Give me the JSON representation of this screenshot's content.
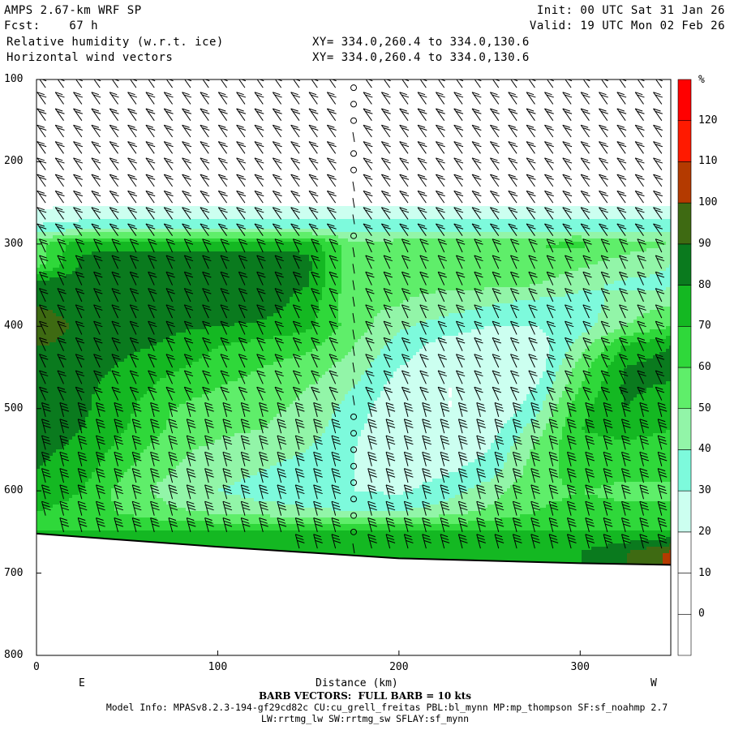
{
  "header": {
    "line1_left": "AMPS 2.67-km WRF SP",
    "line1_right": "Init: 00 UTC Sat 31 Jan 26",
    "line2_left": "Fcst:    67 h",
    "line2_right": "Valid: 19 UTC Mon 02 Feb 26",
    "line3_left": "Relative humidity (w.r.t. ice)",
    "line3_right": "XY= 334.0,260.4 to 334.0,130.6",
    "line4_left": "Horizontal wind vectors",
    "line4_right": "XY= 334.0,260.4 to 334.0,130.6"
  },
  "chart_data": {
    "type": "heatmap",
    "title": "Relative humidity (w.r.t. ice)",
    "xlabel": "Distance (km)",
    "ylabel": "",
    "xlim": [
      0,
      350
    ],
    "ylim": [
      800,
      100
    ],
    "x_ticks": [
      0,
      100,
      200,
      300
    ],
    "y_ticks": [
      100,
      200,
      300,
      400,
      500,
      600,
      700,
      800
    ],
    "x_end_labels": {
      "left": "E",
      "right": "W"
    },
    "colorbar": {
      "unit": "%",
      "levels": [
        0,
        10,
        20,
        30,
        40,
        50,
        60,
        70,
        80,
        90,
        100,
        110,
        120
      ],
      "colors": [
        "#ffffff",
        "#ffffff",
        "#ffffff",
        "#ccfff0",
        "#7dfadc",
        "#92f5a8",
        "#5fee6a",
        "#2fd83a",
        "#14b822",
        "#0a7a1e",
        "#3e6a12",
        "#b43a00",
        "#ff1a00"
      ]
    },
    "terrain": {
      "x": [
        0,
        100,
        200,
        300,
        350
      ],
      "p": [
        652,
        668,
        682,
        688,
        690
      ]
    },
    "rh_field": {
      "x": [
        0,
        25,
        50,
        75,
        100,
        125,
        150,
        175,
        200,
        225,
        250,
        275,
        300,
        325,
        350
      ],
      "p": [
        100,
        200,
        280,
        300,
        325,
        350,
        375,
        400,
        425,
        450,
        475,
        500,
        525,
        550,
        575,
        600,
        625,
        650,
        675
      ],
      "values": [
        [
          0,
          0,
          0,
          0,
          0,
          0,
          0,
          0,
          0,
          0,
          0,
          0,
          0,
          0,
          0
        ],
        [
          0,
          0,
          0,
          0,
          0,
          0,
          0,
          0,
          0,
          0,
          0,
          0,
          0,
          0,
          0
        ],
        [
          42,
          45,
          45,
          45,
          45,
          45,
          45,
          45,
          45,
          45,
          45,
          45,
          45,
          45,
          45
        ],
        [
          65,
          88,
          88,
          88,
          88,
          88,
          88,
          62,
          65,
          65,
          70,
          70,
          72,
          65,
          60
        ],
        [
          65,
          92,
          95,
          95,
          95,
          95,
          92,
          62,
          62,
          68,
          70,
          68,
          62,
          55,
          50
        ],
        [
          98,
          96,
          96,
          97,
          97,
          95,
          90,
          62,
          62,
          62,
          62,
          60,
          52,
          48,
          48
        ],
        [
          100,
          97,
          95,
          96,
          98,
          95,
          85,
          62,
          60,
          55,
          50,
          45,
          45,
          55,
          60
        ],
        [
          105,
          98,
          95,
          92,
          90,
          88,
          82,
          65,
          52,
          45,
          40,
          40,
          45,
          60,
          70
        ],
        [
          100,
          98,
          92,
          88,
          80,
          75,
          72,
          60,
          45,
          35,
          32,
          32,
          55,
          82,
          90
        ],
        [
          98,
          95,
          88,
          82,
          75,
          70,
          65,
          55,
          40,
          33,
          30,
          32,
          65,
          90,
          95
        ],
        [
          96,
          92,
          85,
          75,
          70,
          65,
          60,
          50,
          35,
          30,
          30,
          40,
          70,
          92,
          88
        ],
        [
          95,
          92,
          82,
          70,
          65,
          62,
          58,
          45,
          32,
          30,
          30,
          45,
          78,
          90,
          85
        ],
        [
          94,
          90,
          80,
          68,
          62,
          60,
          55,
          42,
          32,
          30,
          35,
          55,
          80,
          82,
          80
        ],
        [
          92,
          88,
          75,
          62,
          58,
          55,
          50,
          40,
          32,
          32,
          40,
          62,
          78,
          78,
          78
        ],
        [
          90,
          84,
          70,
          60,
          55,
          50,
          45,
          40,
          35,
          38,
          45,
          65,
          75,
          72,
          72
        ],
        [
          88,
          80,
          65,
          55,
          50,
          45,
          42,
          40,
          38,
          45,
          55,
          68,
          70,
          68,
          68
        ],
        [
          80,
          75,
          68,
          62,
          58,
          55,
          52,
          50,
          50,
          55,
          62,
          70,
          72,
          72,
          72
        ],
        [
          80,
          80,
          80,
          80,
          80,
          80,
          80,
          80,
          80,
          80,
          80,
          80,
          80,
          80,
          80
        ],
        [
          85,
          85,
          85,
          85,
          85,
          85,
          85,
          85,
          85,
          85,
          85,
          85,
          90,
          100,
          112
        ]
      ]
    },
    "wind_barbs": {
      "note": "BARB VECTORS: FULL BARB = 10 kts",
      "x": [
        5,
        15,
        25,
        35,
        45,
        55,
        65,
        75,
        85,
        95,
        105,
        115,
        125,
        135,
        145,
        155,
        165,
        175,
        185,
        195,
        205,
        215,
        225,
        235,
        245,
        255,
        265,
        275,
        285,
        295,
        305,
        315,
        325,
        335,
        345
      ],
      "p": [
        110,
        130,
        150,
        170,
        190,
        210,
        230,
        250,
        270,
        290,
        310,
        330,
        350,
        370,
        390,
        410,
        430,
        450,
        470,
        490,
        510,
        530,
        550,
        570,
        590,
        610,
        630,
        650,
        670
      ],
      "calm_column_x": 175
    }
  },
  "footer": {
    "barb_note": "BARB VECTORS:  FULL BARB = 10 kts",
    "model_info": "Model Info: MPASv8.2.3-194-gf29cd82c CU:cu_grell_freitas PBL:bl_mynn MP:mp_thompson SF:sf_noahmp 2.7",
    "model_info2": "LW:rrtmg_lw SW:rrtmg_sw SFLAY:sf_mynn"
  }
}
